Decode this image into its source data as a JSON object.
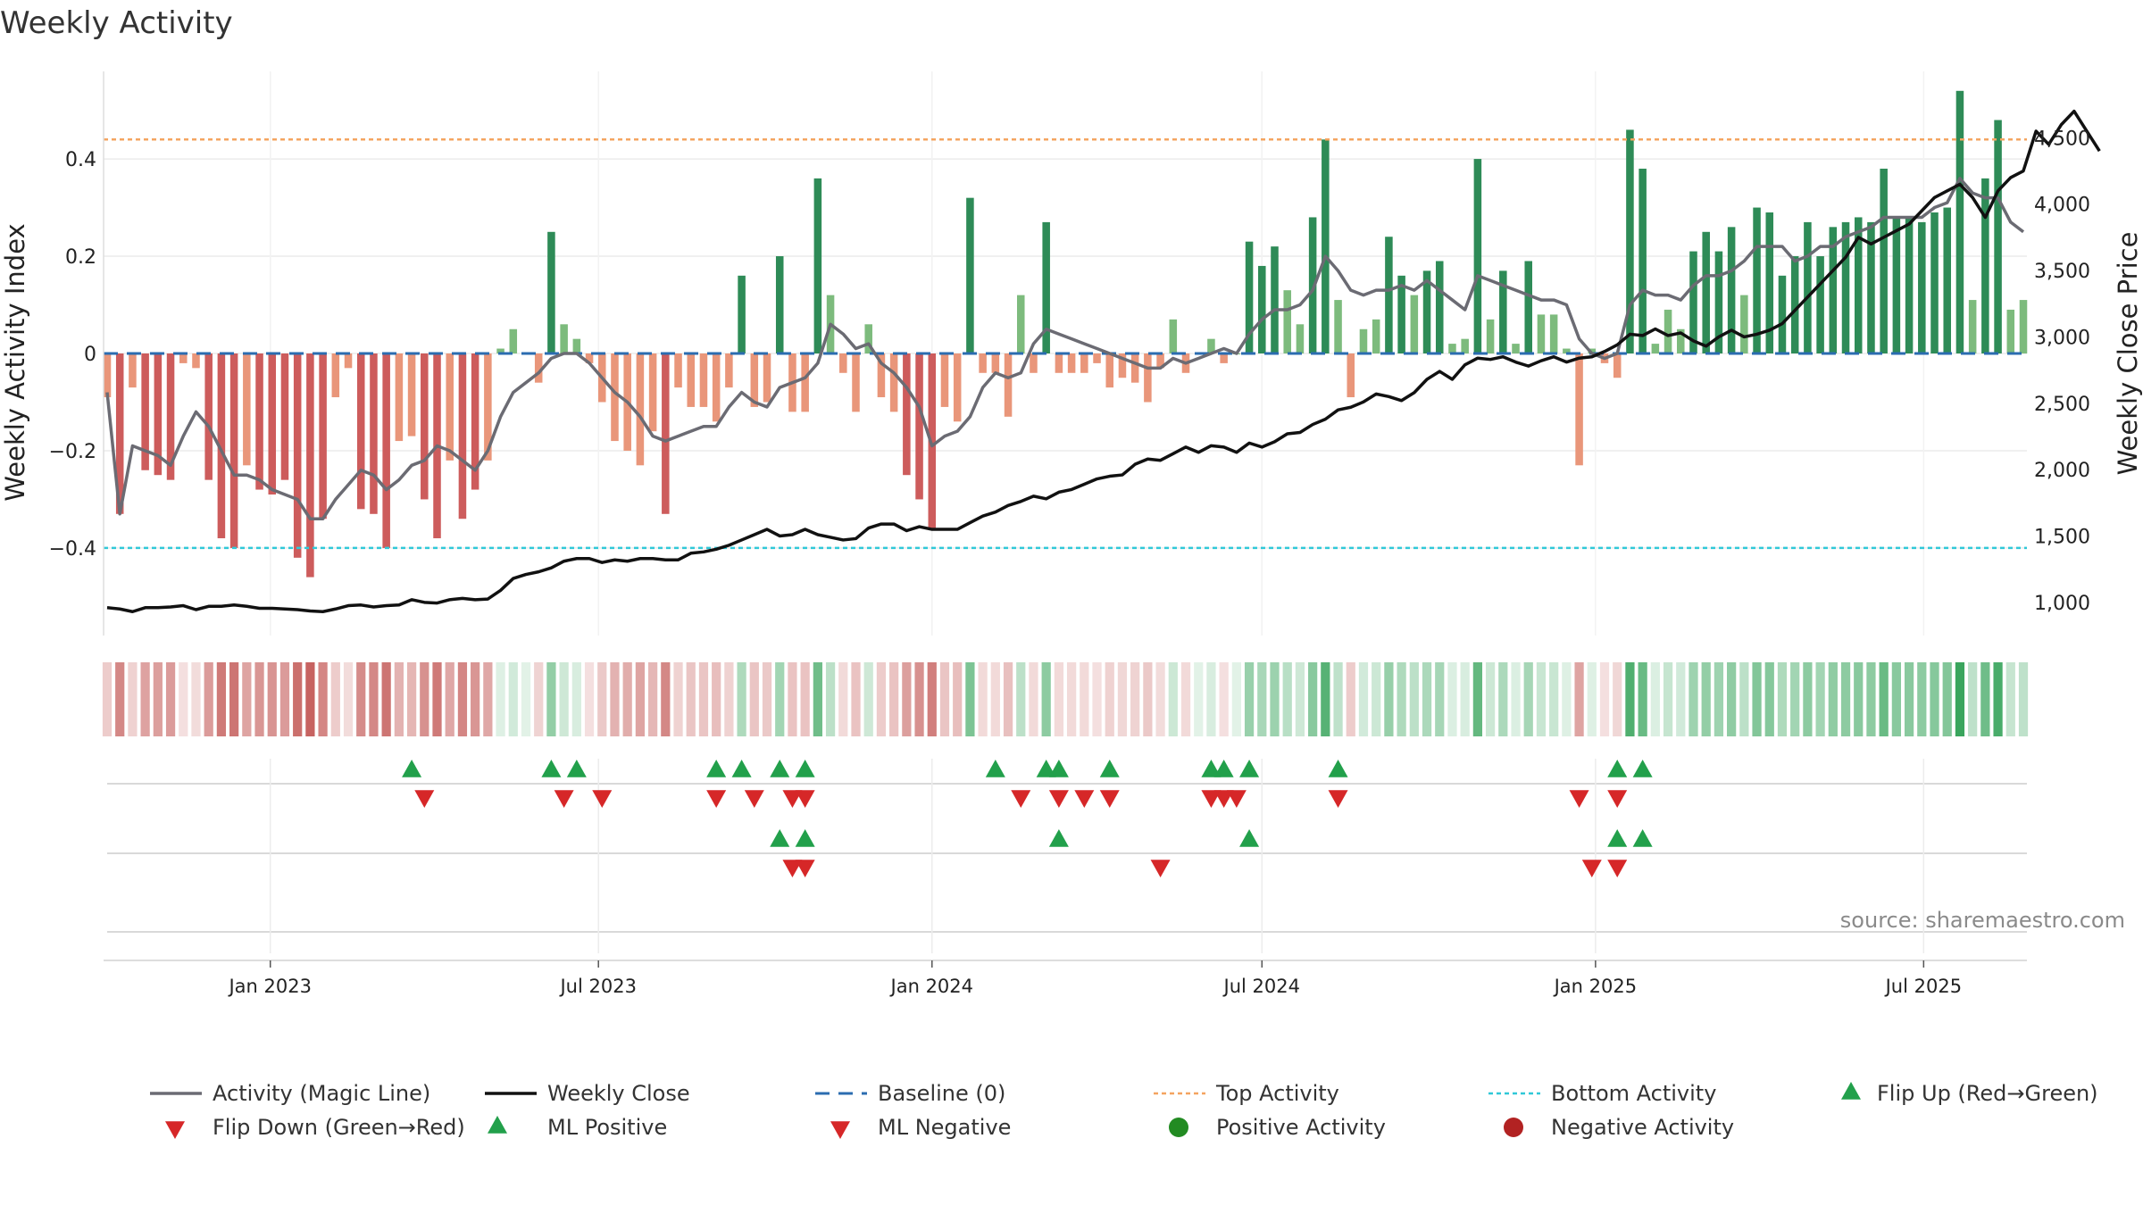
{
  "title": "Weekly Activity",
  "source": "source: sharemaestro.com",
  "chart_data": {
    "type": "bar",
    "x_start": "2022-10-03",
    "x_step_days": 7,
    "xlabel": "",
    "ylabel": "Weekly Activity Index",
    "y2label": "Weekly Close Price",
    "ylim": [
      -0.58,
      0.58
    ],
    "y2lim": [
      750,
      5000
    ],
    "y_ticks": [
      {
        "v": -0.4,
        "label": "−0.4"
      },
      {
        "v": -0.2,
        "label": "−0.2"
      },
      {
        "v": 0,
        "label": "0"
      },
      {
        "v": 0.2,
        "label": "0.2"
      },
      {
        "v": 0.4,
        "label": "0.4"
      }
    ],
    "y2_ticks": [
      {
        "v": 1000,
        "label": "1,000"
      },
      {
        "v": 1500,
        "label": "1,500"
      },
      {
        "v": 2000,
        "label": "2,000"
      },
      {
        "v": 2500,
        "label": "2,500"
      },
      {
        "v": 3000,
        "label": "3,000"
      },
      {
        "v": 3500,
        "label": "3,500"
      },
      {
        "v": 4000,
        "label": "4,000"
      },
      {
        "v": 4500,
        "label": "4,500"
      }
    ],
    "x_ticks": [
      {
        "date": "2023-01-01",
        "label": "Jan 2023"
      },
      {
        "date": "2023-07-01",
        "label": "Jul 2023"
      },
      {
        "date": "2024-01-01",
        "label": "Jan 2024"
      },
      {
        "date": "2024-07-01",
        "label": "Jul 2024"
      },
      {
        "date": "2025-01-01",
        "label": "Jan 2025"
      },
      {
        "date": "2025-07-01",
        "label": "Jul 2025"
      }
    ],
    "grid": true,
    "top_activity": 0.44,
    "bottom_activity": -0.4,
    "baseline": 0,
    "colors": {
      "strong_green": "#2e8b57",
      "light_green": "#7dbb7d",
      "strong_red": "#cd5c5c",
      "light_red": "#e9967a",
      "magic_line": "#6b6b73",
      "close": "#111111",
      "baseline": "#2b6cb0",
      "top": "#f4a460",
      "bottom": "#30c8d8",
      "up_marker": "#22a04b",
      "down_marker": "#d62728",
      "pos_dot": "#228b22",
      "neg_dot": "#b22222",
      "heat_pos": "#3aa55d",
      "heat_neg": "#c0504d"
    },
    "activity": [
      -0.09,
      -0.33,
      -0.07,
      -0.24,
      -0.25,
      -0.26,
      -0.02,
      -0.03,
      -0.26,
      -0.38,
      -0.4,
      -0.23,
      -0.28,
      -0.29,
      -0.26,
      -0.42,
      -0.46,
      -0.34,
      -0.09,
      -0.03,
      -0.32,
      -0.33,
      -0.4,
      -0.18,
      -0.17,
      -0.3,
      -0.38,
      -0.22,
      -0.34,
      -0.28,
      -0.22,
      0.01,
      0.05,
      0.0,
      -0.06,
      0.25,
      0.06,
      0.03,
      -0.02,
      -0.1,
      -0.18,
      -0.2,
      -0.23,
      -0.16,
      -0.33,
      -0.07,
      -0.11,
      -0.11,
      -0.14,
      -0.07,
      0.16,
      -0.11,
      -0.1,
      0.2,
      -0.12,
      -0.12,
      0.36,
      0.12,
      -0.04,
      -0.12,
      0.06,
      -0.09,
      -0.12,
      -0.25,
      -0.3,
      -0.36,
      -0.11,
      -0.14,
      0.32,
      -0.04,
      -0.04,
      -0.13,
      0.12,
      -0.04,
      0.27,
      -0.04,
      -0.04,
      -0.04,
      -0.02,
      -0.07,
      -0.05,
      -0.06,
      -0.1,
      -0.03,
      0.07,
      -0.04,
      0.0,
      0.03,
      -0.02,
      0.0,
      0.23,
      0.18,
      0.22,
      0.13,
      0.06,
      0.28,
      0.44,
      0.11,
      -0.09,
      0.05,
      0.07,
      0.24,
      0.16,
      0.12,
      0.17,
      0.19,
      0.02,
      0.03,
      0.4,
      0.07,
      0.17,
      0.02,
      0.19,
      0.08,
      0.08,
      0.01,
      -0.23,
      0.01,
      -0.02,
      -0.05,
      0.46,
      0.38,
      0.02,
      0.09,
      0.05,
      0.21,
      0.25,
      0.21,
      0.26,
      0.12,
      0.3,
      0.29,
      0.16,
      0.2,
      0.27,
      0.2,
      0.26,
      0.27,
      0.28,
      0.27,
      0.38,
      0.28,
      0.28,
      0.27,
      0.29,
      0.3,
      0.54,
      0.11,
      0.36,
      0.48,
      0.09,
      0.11
    ],
    "magic_line": [
      -0.08,
      -0.33,
      -0.19,
      -0.2,
      -0.21,
      -0.23,
      -0.17,
      -0.12,
      -0.15,
      -0.2,
      -0.25,
      -0.25,
      -0.26,
      -0.28,
      -0.29,
      -0.3,
      -0.34,
      -0.34,
      -0.3,
      -0.27,
      -0.24,
      -0.25,
      -0.28,
      -0.26,
      -0.23,
      -0.22,
      -0.19,
      -0.2,
      -0.22,
      -0.24,
      -0.2,
      -0.13,
      -0.08,
      -0.06,
      -0.04,
      -0.01,
      0.0,
      0.0,
      -0.02,
      -0.05,
      -0.08,
      -0.1,
      -0.13,
      -0.17,
      -0.18,
      -0.17,
      -0.16,
      -0.15,
      -0.15,
      -0.11,
      -0.08,
      -0.1,
      -0.11,
      -0.07,
      -0.06,
      -0.05,
      -0.02,
      0.06,
      0.04,
      0.01,
      0.02,
      -0.02,
      -0.04,
      -0.07,
      -0.11,
      -0.19,
      -0.17,
      -0.16,
      -0.13,
      -0.07,
      -0.04,
      -0.05,
      -0.04,
      0.02,
      0.05,
      0.04,
      0.03,
      0.02,
      0.01,
      0.0,
      -0.01,
      -0.02,
      -0.03,
      -0.03,
      -0.01,
      -0.02,
      -0.01,
      0.0,
      0.01,
      0.0,
      0.04,
      0.07,
      0.09,
      0.09,
      0.1,
      0.13,
      0.2,
      0.17,
      0.13,
      0.12,
      0.13,
      0.13,
      0.14,
      0.13,
      0.15,
      0.13,
      0.11,
      0.09,
      0.16,
      0.15,
      0.14,
      0.13,
      0.12,
      0.11,
      0.11,
      0.1,
      0.03,
      0.0,
      -0.01,
      0.0,
      0.1,
      0.13,
      0.12,
      0.12,
      0.11,
      0.14,
      0.16,
      0.16,
      0.17,
      0.19,
      0.22,
      0.22,
      0.22,
      0.19,
      0.2,
      0.22,
      0.22,
      0.24,
      0.25,
      0.26,
      0.28,
      0.28,
      0.28,
      0.28,
      0.3,
      0.31,
      0.36,
      0.33,
      0.32,
      0.32,
      0.27,
      0.25
    ],
    "close": [
      960,
      950,
      930,
      960,
      960,
      965,
      975,
      945,
      970,
      970,
      980,
      970,
      955,
      955,
      950,
      945,
      935,
      930,
      950,
      975,
      980,
      965,
      975,
      980,
      1020,
      1000,
      995,
      1020,
      1030,
      1020,
      1025,
      1090,
      1180,
      1210,
      1230,
      1260,
      1310,
      1330,
      1330,
      1300,
      1320,
      1310,
      1330,
      1330,
      1320,
      1320,
      1370,
      1380,
      1400,
      1430,
      1470,
      1510,
      1550,
      1500,
      1510,
      1550,
      1510,
      1490,
      1470,
      1480,
      1560,
      1590,
      1590,
      1540,
      1570,
      1550,
      1550,
      1550,
      1600,
      1650,
      1680,
      1730,
      1760,
      1800,
      1780,
      1830,
      1850,
      1890,
      1930,
      1950,
      1960,
      2040,
      2080,
      2070,
      2120,
      2170,
      2130,
      2180,
      2170,
      2130,
      2200,
      2170,
      2210,
      2270,
      2280,
      2340,
      2380,
      2450,
      2470,
      2510,
      2570,
      2550,
      2520,
      2580,
      2680,
      2740,
      2680,
      2790,
      2840,
      2830,
      2850,
      2810,
      2780,
      2820,
      2850,
      2810,
      2840,
      2850,
      2890,
      2940,
      3020,
      3010,
      3060,
      3010,
      3030,
      2970,
      2930,
      3000,
      3050,
      3000,
      3020,
      3050,
      3100,
      3200,
      3300,
      3400,
      3500,
      3600,
      3750,
      3700,
      3750,
      3800,
      3850,
      3950,
      4050,
      4100,
      4150,
      4050,
      3900,
      4100,
      4200,
      4250,
      4550,
      4450,
      4600,
      4700,
      4550,
      4400
    ],
    "flip_up_weeks": [
      9,
      16,
      18,
      26,
      27,
      29,
      30,
      34,
      36,
      37,
      39,
      42,
      43,
      44,
      50,
      62,
      63
    ],
    "flip_down_weeks": [
      10,
      17,
      20,
      26,
      28,
      31,
      32,
      36,
      38,
      39,
      40,
      45,
      47,
      48,
      53,
      59,
      60
    ],
    "ml_positive_weeks": [
      29,
      30,
      37,
      46,
      59,
      60
    ],
    "ml_negative_weeks": [
      31,
      32,
      41,
      58,
      59
    ],
    "flip_up_dates": [
      "2023-03-20",
      "2023-06-05",
      "2023-06-19",
      "2023-09-04",
      "2023-09-18",
      "2023-10-09",
      "2023-10-23",
      "2024-02-05",
      "2024-03-04",
      "2024-03-11",
      "2024-04-08",
      "2024-06-03",
      "2024-06-10",
      "2024-06-24",
      "2024-08-12",
      "2025-01-13",
      "2025-01-27"
    ],
    "flip_down_dates": [
      "2023-03-27",
      "2023-06-12",
      "2023-07-03",
      "2023-09-04",
      "2023-09-25",
      "2023-10-16",
      "2023-10-23",
      "2024-02-19",
      "2024-03-11",
      "2024-03-25",
      "2024-04-08",
      "2024-06-03",
      "2024-06-10",
      "2024-06-17",
      "2024-08-12",
      "2024-12-23",
      "2025-01-13"
    ],
    "ml_positive_dates": [
      "2023-10-09",
      "2023-10-23",
      "2024-03-11",
      "2024-06-24",
      "2025-01-13",
      "2025-01-27"
    ],
    "ml_negative_dates": [
      "2023-10-16",
      "2023-10-23",
      "2024-05-06",
      "2024-12-30",
      "2025-01-13"
    ],
    "legend": [
      {
        "key": "magic",
        "label": "Activity (Magic Line)"
      },
      {
        "key": "close",
        "label": "Weekly Close"
      },
      {
        "key": "baseline",
        "label": "Baseline (0)"
      },
      {
        "key": "top",
        "label": "Top Activity"
      },
      {
        "key": "bottom",
        "label": "Bottom Activity"
      },
      {
        "key": "flipup",
        "label": "Flip Up (Red→Green)"
      },
      {
        "key": "flipdown",
        "label": "Flip Down (Green→Red)"
      },
      {
        "key": "mlpos",
        "label": "ML Positive"
      },
      {
        "key": "mlneg",
        "label": "ML Negative"
      },
      {
        "key": "posact",
        "label": "Positive Activity"
      },
      {
        "key": "negact",
        "label": "Negative Activity"
      }
    ]
  }
}
